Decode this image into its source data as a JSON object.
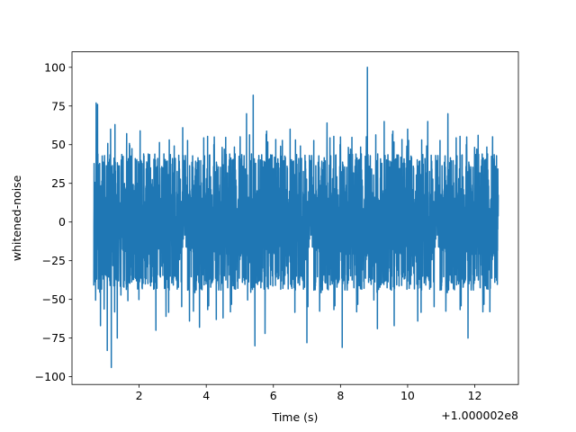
{
  "chart_data": {
    "type": "line",
    "title": "",
    "xlabel": "Time (s)",
    "ylabel": "whitened-noise",
    "x_offset_label": "+1.000002e8",
    "xlim": [
      0.0,
      13.3
    ],
    "ylim": [
      -105,
      110
    ],
    "x_ticks": [
      2,
      4,
      6,
      8,
      10,
      12
    ],
    "y_ticks": [
      -100,
      -75,
      -50,
      -25,
      0,
      25,
      50,
      75,
      100
    ],
    "x_tick_labels": [
      "2",
      "4",
      "6",
      "8",
      "10",
      "12"
    ],
    "y_tick_labels": [
      "−100",
      "−75",
      "−50",
      "−25",
      "0",
      "25",
      "50",
      "75",
      "100"
    ],
    "grid": false,
    "legend": "none",
    "line_color": "#1f77b4",
    "series": [
      {
        "x_range": [
          0.65,
          12.7
        ],
        "band_upper": 40,
        "band_lower": -40,
        "spikes": [
          {
            "x": 0.72,
            "y": 77
          },
          {
            "x": 0.76,
            "y": 76
          },
          {
            "x": 0.85,
            "y": -67
          },
          {
            "x": 1.05,
            "y": -83
          },
          {
            "x": 1.15,
            "y": 60
          },
          {
            "x": 1.17,
            "y": -94
          },
          {
            "x": 1.28,
            "y": 63
          },
          {
            "x": 1.35,
            "y": -75
          },
          {
            "x": 2.5,
            "y": -70
          },
          {
            "x": 2.8,
            "y": -61
          },
          {
            "x": 3.3,
            "y": 61
          },
          {
            "x": 3.5,
            "y": -64
          },
          {
            "x": 3.8,
            "y": -68
          },
          {
            "x": 4.3,
            "y": -63
          },
          {
            "x": 4.5,
            "y": -62
          },
          {
            "x": 5.2,
            "y": 70
          },
          {
            "x": 5.4,
            "y": 82
          },
          {
            "x": 5.45,
            "y": -80
          },
          {
            "x": 5.75,
            "y": -72
          },
          {
            "x": 6.5,
            "y": 60
          },
          {
            "x": 7.0,
            "y": -78
          },
          {
            "x": 7.6,
            "y": 64
          },
          {
            "x": 8.05,
            "y": -81
          },
          {
            "x": 8.8,
            "y": 100
          },
          {
            "x": 9.1,
            "y": -69
          },
          {
            "x": 9.3,
            "y": 65
          },
          {
            "x": 9.6,
            "y": -67
          },
          {
            "x": 10.0,
            "y": 60
          },
          {
            "x": 10.3,
            "y": -64
          },
          {
            "x": 10.6,
            "y": 65
          },
          {
            "x": 11.2,
            "y": 70
          },
          {
            "x": 11.8,
            "y": -75
          },
          {
            "x": 12.1,
            "y": 56
          },
          {
            "x": 12.45,
            "y": -58
          }
        ]
      }
    ]
  }
}
